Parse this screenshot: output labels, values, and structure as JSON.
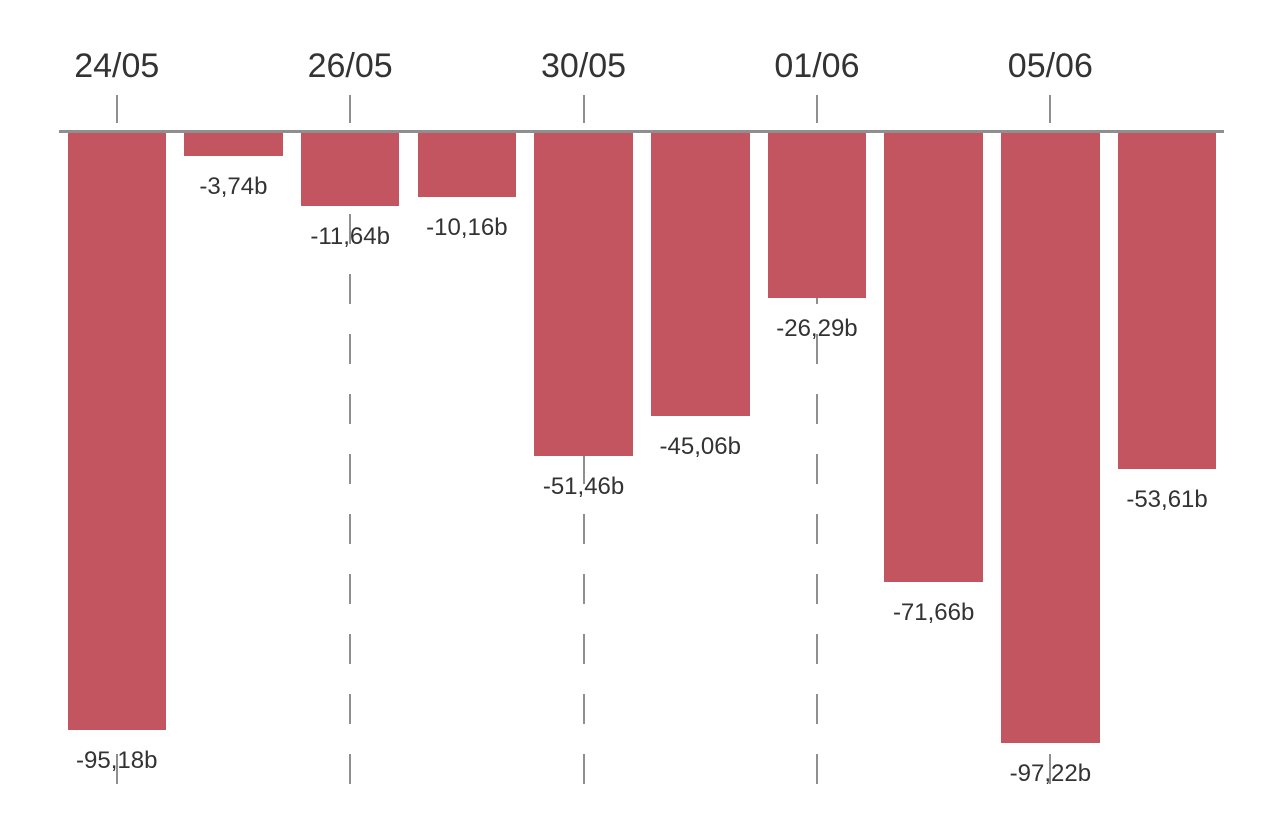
{
  "chart": {
    "background_color": "#ffffff",
    "bar_color": "#c2555f",
    "axis_color": "#8f8f8f",
    "text_color": "#333333"
  },
  "chart_data": {
    "type": "bar",
    "orientation": "vertical",
    "title": "",
    "xlabel": "",
    "ylabel": "",
    "ylim": [
      -100,
      0
    ],
    "grid": "dashed-vertical-lines-at-x-ticks",
    "legend_position": "none",
    "value_label_position": "below-bar",
    "unit_suffix": "b",
    "decimal_separator": ",",
    "x_ticks": [
      {
        "label": "24/05",
        "bar_index": 0
      },
      {
        "label": "26/05",
        "bar_index": 2
      },
      {
        "label": "30/05",
        "bar_index": 4
      },
      {
        "label": "01/06",
        "bar_index": 6
      },
      {
        "label": "05/06",
        "bar_index": 8
      }
    ],
    "series": [
      {
        "name": "daily-values",
        "bars": [
          {
            "display": "-95,18b",
            "value": -95.18
          },
          {
            "display": "-3,74b",
            "value": -3.74
          },
          {
            "display": "-11,64b",
            "value": -11.64
          },
          {
            "display": "-10,16b",
            "value": -10.16
          },
          {
            "display": "-51,46b",
            "value": -51.46
          },
          {
            "display": "-45,06b",
            "value": -45.06
          },
          {
            "display": "-26,29b",
            "value": -26.29
          },
          {
            "display": "-71,66b",
            "value": -71.66
          },
          {
            "display": "-97,22b",
            "value": -97.22
          },
          {
            "display": "-53,61b",
            "value": -53.61
          }
        ]
      }
    ]
  }
}
